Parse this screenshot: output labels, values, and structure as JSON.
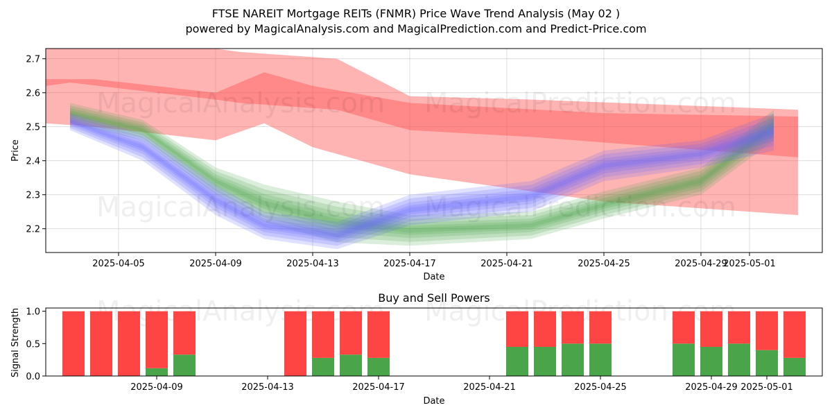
{
  "colors": {
    "red": "#ff4d4d",
    "green": "#4ca64c",
    "blue": "#6666ff",
    "bar_red": "#ff4444",
    "bar_green": "#4aa54a"
  },
  "watermarks": [
    "MagicalAnalysis.com",
    "MagicalPrediction.com"
  ],
  "chart_data": [
    {
      "type": "area",
      "title": "FTSE NAREIT Mortgage REITs (FNMR) Price Wave Trend Analysis (May 02 )",
      "subtitle": "powered by MagicalAnalysis.com and MagicalPrediction.com and Predict-Price.com",
      "xlabel": "Date",
      "ylabel": "Price",
      "xlim": [
        "2025-04-02",
        "2025-05-04"
      ],
      "ylim": [
        2.13,
        2.73
      ],
      "xticks": [
        "2025-04-05",
        "2025-04-09",
        "2025-04-13",
        "2025-04-17",
        "2025-04-21",
        "2025-04-25",
        "2025-04-29",
        "2025-05-01"
      ],
      "yticks": [
        2.2,
        2.3,
        2.4,
        2.5,
        2.6,
        2.7
      ],
      "grid": true,
      "series": [
        {
          "name": "Upper red band",
          "color": "red",
          "x": [
            "2025-04-02",
            "2025-04-03",
            "2025-04-09",
            "2025-04-10",
            "2025-04-14",
            "2025-04-17",
            "2025-04-22",
            "2025-05-03"
          ],
          "upper": [
            2.73,
            2.73,
            2.73,
            2.72,
            2.7,
            2.59,
            2.58,
            2.55
          ],
          "lower": [
            2.62,
            2.63,
            2.58,
            2.57,
            2.55,
            2.49,
            2.47,
            2.41
          ]
        },
        {
          "name": "Lower red band",
          "color": "red",
          "x": [
            "2025-04-02",
            "2025-04-04",
            "2025-04-09",
            "2025-04-11",
            "2025-04-13",
            "2025-04-17",
            "2025-04-25",
            "2025-05-03"
          ],
          "upper": [
            2.64,
            2.64,
            2.6,
            2.66,
            2.62,
            2.57,
            2.54,
            2.53
          ],
          "lower": [
            2.51,
            2.5,
            2.46,
            2.51,
            2.44,
            2.36,
            2.28,
            2.24
          ]
        },
        {
          "name": "Green band",
          "color": "green",
          "x": [
            "2025-04-03",
            "2025-04-06",
            "2025-04-09",
            "2025-04-11",
            "2025-04-14",
            "2025-04-17",
            "2025-04-22",
            "2025-04-25",
            "2025-04-29",
            "2025-05-02"
          ],
          "upper": [
            2.57,
            2.52,
            2.38,
            2.33,
            2.28,
            2.24,
            2.25,
            2.31,
            2.38,
            2.55
          ],
          "lower": [
            2.51,
            2.46,
            2.3,
            2.22,
            2.16,
            2.15,
            2.17,
            2.23,
            2.3,
            2.46
          ]
        },
        {
          "name": "Blue band",
          "color": "blue",
          "x": [
            "2025-04-03",
            "2025-04-06",
            "2025-04-09",
            "2025-04-11",
            "2025-04-14",
            "2025-04-17",
            "2025-04-22",
            "2025-04-25",
            "2025-04-29",
            "2025-05-02"
          ],
          "upper": [
            2.54,
            2.48,
            2.33,
            2.25,
            2.22,
            2.3,
            2.34,
            2.43,
            2.46,
            2.54
          ],
          "lower": [
            2.49,
            2.4,
            2.24,
            2.17,
            2.14,
            2.21,
            2.25,
            2.34,
            2.38,
            2.43
          ]
        }
      ]
    },
    {
      "type": "bar",
      "title": "Buy and Sell Powers",
      "xlabel": "Date",
      "ylabel": "Signal Strength",
      "xlim": [
        "2025-04-05",
        "2025-05-03"
      ],
      "ylim": [
        0,
        1.05
      ],
      "xticks": [
        "2025-04-09",
        "2025-04-13",
        "2025-04-17",
        "2025-04-21",
        "2025-04-25",
        "2025-04-29",
        "2025-05-01"
      ],
      "yticks": [
        0.0,
        0.5,
        1.0
      ],
      "dates": [
        "2025-04-06",
        "2025-04-07",
        "2025-04-08",
        "2025-04-09",
        "2025-04-10",
        "2025-04-14",
        "2025-04-15",
        "2025-04-16",
        "2025-04-17",
        "2025-04-22",
        "2025-04-23",
        "2025-04-24",
        "2025-04-25",
        "2025-04-28",
        "2025-04-29",
        "2025-04-30",
        "2025-05-01",
        "2025-05-02"
      ],
      "series": [
        {
          "name": "Buy",
          "color": "bar_green",
          "values": [
            0,
            0,
            0,
            0.12,
            0.33,
            0,
            0.28,
            0.33,
            0.28,
            0.45,
            0.45,
            0.5,
            0.5,
            0.5,
            0.45,
            0.5,
            0.4,
            0.28
          ]
        },
        {
          "name": "Sell",
          "color": "bar_red",
          "values": [
            1,
            1,
            1,
            0.88,
            0.67,
            1,
            0.72,
            0.67,
            0.72,
            0.55,
            0.55,
            0.5,
            0.5,
            0.5,
            0.55,
            0.5,
            0.6,
            0.72
          ]
        }
      ]
    }
  ]
}
